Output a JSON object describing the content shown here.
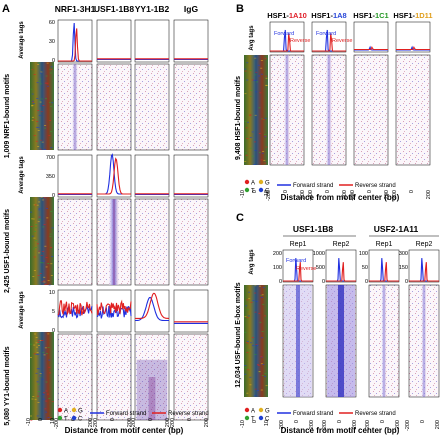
{
  "panelA": {
    "letter": "A",
    "columns": [
      "NRF1-3H1",
      "USF1-1B8",
      "YY1-1B2",
      "IgG"
    ],
    "ylabel": "Average tags",
    "rows": [
      {
        "label": "1,009 NRF1-bound motifs",
        "yticks": [
          "0",
          "30",
          "60"
        ]
      },
      {
        "label": "2,425 USF1-bound motifs",
        "yticks": [
          "0",
          "350",
          "700"
        ]
      },
      {
        "label": "5,080 YY1-bound motifs",
        "yticks": [
          "0",
          "5",
          "10"
        ]
      }
    ],
    "xticks": [
      "-10",
      "0",
      "10"
    ],
    "hticks": [
      "-200",
      "0",
      "200"
    ],
    "legend": {
      "A": "A",
      "G": "G",
      "T": "T",
      "C": "C",
      "forward": "Forward strand",
      "reverse": "Reverse strand"
    },
    "xlabel": "Distance from motif center (bp)"
  },
  "panelB": {
    "letter": "B",
    "columns": [
      {
        "prefix": "HSF1-",
        "suffix": "1A10",
        "color": "#e0202a"
      },
      {
        "prefix": "HSF1-",
        "suffix": "1A8",
        "color": "#2a48d8"
      },
      {
        "prefix": "HSF1-",
        "suffix": "1C1",
        "color": "#2a9a2a"
      },
      {
        "prefix": "HSF1-",
        "suffix": "1D11",
        "color": "#e0a020"
      }
    ],
    "ylabel": "Avg tags",
    "forward": "Forward",
    "reverse": "Reverse",
    "rowlabel": "9,408 HSF1-bound motifs",
    "xticks": [
      "-10",
      "0",
      "10"
    ],
    "hticks": [
      "-200",
      "0",
      "200"
    ],
    "legend": {
      "A": "A",
      "G": "G",
      "T": "T",
      "C": "C",
      "forward": "Forward strand",
      "reverse": "Reverse strand"
    },
    "xlabel": "Distance from motif center (bp)"
  },
  "panelC": {
    "letter": "C",
    "groups": [
      "USF1-1B8",
      "USF2-1A11"
    ],
    "reps": [
      "Rep1",
      "Rep2",
      "Rep1",
      "Rep2"
    ],
    "ylabel": "Avg tags",
    "yticks": [
      [
        "0",
        "100",
        "200"
      ],
      [
        "0",
        "500",
        "1000"
      ],
      [
        "0",
        "50",
        "100"
      ],
      [
        "0",
        "150",
        "300"
      ]
    ],
    "forward": "Forward",
    "reverse": "Reverse",
    "rowlabel": "12,034 USF-bound E-box motifs",
    "xticks": [
      "-10",
      "0",
      "10"
    ],
    "hticks": [
      "-200",
      "0",
      "200"
    ],
    "legend": {
      "A": "A",
      "G": "G",
      "T": "T",
      "C": "C",
      "forward": "Forward strand",
      "reverse": "Reverse strand"
    },
    "xlabel": "Distance from motif center (bp)"
  },
  "colors": {
    "forward": "#2030e0",
    "reverse": "#e02020",
    "A": "#e02020",
    "G": "#e0b020",
    "T": "#30a030",
    "C": "#2040d0"
  }
}
